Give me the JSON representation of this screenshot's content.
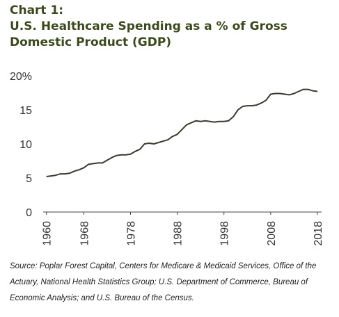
{
  "chart_data": {
    "type": "line",
    "chart_label": "Chart 1:",
    "title": "U.S. Healthcare Spending as a % of Gross Domestic Product (GDP)",
    "source": "Source: Poplar Forest Capital, Centers for Medicare & Medicaid Services, Office of the Actuary, National Health Statistics Group; U.S. Department of Commerce, Bureau of Economic Analysis; and U.S. Bureau of the Census.",
    "x": [
      1960,
      1961,
      1962,
      1963,
      1964,
      1965,
      1966,
      1967,
      1968,
      1969,
      1970,
      1971,
      1972,
      1973,
      1974,
      1975,
      1976,
      1977,
      1978,
      1979,
      1980,
      1981,
      1982,
      1983,
      1984,
      1985,
      1986,
      1987,
      1988,
      1989,
      1990,
      1991,
      1992,
      1993,
      1994,
      1995,
      1996,
      1997,
      1998,
      1999,
      2000,
      2001,
      2002,
      2003,
      2004,
      2005,
      2006,
      2007,
      2008,
      2009,
      2010,
      2011,
      2012,
      2013,
      2014,
      2015,
      2016,
      2017,
      2018
    ],
    "series": [
      {
        "color": "#3a3a30",
        "values": [
          5.2,
          5.3,
          5.4,
          5.6,
          5.6,
          5.7,
          6.0,
          6.2,
          6.5,
          7.0,
          7.1,
          7.2,
          7.2,
          7.6,
          8.0,
          8.3,
          8.4,
          8.4,
          8.5,
          8.9,
          9.2,
          10.0,
          10.1,
          10.0,
          10.2,
          10.4,
          10.6,
          11.1,
          11.4,
          12.1,
          12.8,
          13.1,
          13.4,
          13.3,
          13.4,
          13.3,
          13.2,
          13.3,
          13.3,
          13.4,
          14.0,
          15.0,
          15.5,
          15.6,
          15.6,
          15.7,
          16.0,
          16.4,
          17.3,
          17.4,
          17.4,
          17.3,
          17.2,
          17.4,
          17.7,
          18.0,
          18.0,
          17.8,
          17.7
        ]
      }
    ],
    "xlim": [
      1959.3,
      2018.9
    ],
    "xticks": [
      1960,
      1968,
      1978,
      1988,
      1998,
      2008,
      2018
    ],
    "ylim": [
      0,
      20
    ],
    "yticks": [
      0,
      5,
      10,
      15,
      {
        "value": 20,
        "label": "20%"
      }
    ],
    "grid": false
  }
}
